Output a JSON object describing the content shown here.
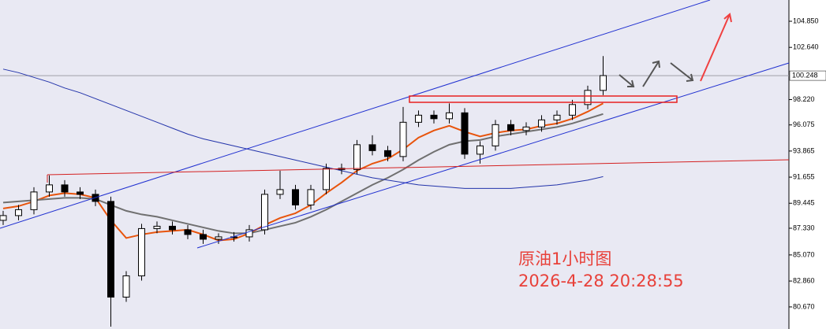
{
  "chart_data": {
    "type": "candlestick",
    "open": [
      88.0,
      88.4,
      88.9,
      90.4,
      91.0,
      90.4,
      90.2,
      89.6,
      81.5,
      83.3,
      87.3,
      87.5,
      87.2,
      86.8,
      86.4,
      86.6,
      86.6,
      87.2,
      90.2,
      90.6,
      89.3,
      90.6,
      92.4,
      92.3,
      94.4,
      93.9,
      93.4,
      96.3,
      96.9,
      96.6,
      97.1,
      93.6,
      94.3,
      96.1,
      95.6,
      95.9,
      96.5,
      96.9,
      97.8,
      99.0
    ],
    "high": [
      88.8,
      89.3,
      90.8,
      91.8,
      91.4,
      90.8,
      90.6,
      90.0,
      83.7,
      87.7,
      87.9,
      87.9,
      87.6,
      87.2,
      86.9,
      87.0,
      87.6,
      90.6,
      92.2,
      91.0,
      91.0,
      92.8,
      92.8,
      94.8,
      95.2,
      94.3,
      97.6,
      97.3,
      97.3,
      97.9,
      97.5,
      94.7,
      96.5,
      96.5,
      96.3,
      96.9,
      97.3,
      98.2,
      99.4,
      101.9
    ],
    "low": [
      87.6,
      88.0,
      88.5,
      90.0,
      90.0,
      89.8,
      89.2,
      79.0,
      81.1,
      82.9,
      86.9,
      86.8,
      86.4,
      86.0,
      86.0,
      86.2,
      86.2,
      86.8,
      89.8,
      88.9,
      88.9,
      90.2,
      91.9,
      91.9,
      93.5,
      93.0,
      93.0,
      95.9,
      96.2,
      96.2,
      93.2,
      92.8,
      93.9,
      95.2,
      95.2,
      95.5,
      96.1,
      96.5,
      97.4,
      98.6
    ],
    "close": [
      88.4,
      88.9,
      90.4,
      91.0,
      90.4,
      90.2,
      89.6,
      81.5,
      83.3,
      87.3,
      87.5,
      87.2,
      86.8,
      86.4,
      86.6,
      86.6,
      87.2,
      90.2,
      90.6,
      89.3,
      90.6,
      92.4,
      92.3,
      94.4,
      93.9,
      93.4,
      96.3,
      96.9,
      96.6,
      97.1,
      93.6,
      94.3,
      96.1,
      95.6,
      95.9,
      96.5,
      96.9,
      97.8,
      99.0,
      100.25
    ],
    "up_color": "#ffffff",
    "down_color": "#000000",
    "series": [
      {
        "color": "#e8540c",
        "values": [
          89.0,
          89.2,
          89.6,
          90.1,
          90.3,
          90.2,
          89.9,
          88.0,
          86.5,
          86.8,
          87.0,
          87.1,
          87.2,
          86.8,
          86.3,
          86.4,
          86.9,
          87.6,
          88.2,
          88.6,
          89.3,
          90.3,
          91.2,
          92.2,
          92.8,
          93.2,
          94.0,
          95.0,
          95.6,
          96.0,
          95.5,
          95.1,
          95.4,
          95.6,
          95.7,
          96.0,
          96.2,
          96.6,
          97.2,
          97.9
        ]
      },
      {
        "color": "#707070",
        "values": [
          89.5,
          89.6,
          89.7,
          89.8,
          89.9,
          89.9,
          89.8,
          89.3,
          88.8,
          88.5,
          88.3,
          88.0,
          87.7,
          87.4,
          87.1,
          86.9,
          86.9,
          87.2,
          87.5,
          87.8,
          88.3,
          88.9,
          89.6,
          90.3,
          91.0,
          91.6,
          92.3,
          93.1,
          93.8,
          94.4,
          94.7,
          94.8,
          95.1,
          95.3,
          95.5,
          95.7,
          95.9,
          96.2,
          96.6,
          97.0
        ]
      },
      {
        "color": "#2233aa",
        "values": [
          100.8,
          100.5,
          100.1,
          99.7,
          99.2,
          98.8,
          98.3,
          97.8,
          97.3,
          96.8,
          96.3,
          95.8,
          95.3,
          94.9,
          94.6,
          94.3,
          94.0,
          93.7,
          93.4,
          93.1,
          92.8,
          92.5,
          92.2,
          91.9,
          91.6,
          91.4,
          91.2,
          91.0,
          90.9,
          90.8,
          90.7,
          90.7,
          90.7,
          90.7,
          90.8,
          90.9,
          91.0,
          91.2,
          91.4,
          91.7
        ]
      }
    ],
    "ylim": [
      78.8,
      106.65
    ],
    "yticks": [
      {
        "value": 104.85,
        "label": "104.850"
      },
      {
        "value": 102.64,
        "label": "102.640"
      },
      {
        "value": 98.22,
        "label": "98.220"
      },
      96.075,
      93.865,
      91.655,
      89.445,
      {
        "value": 87.33,
        "label": "87.330"
      },
      {
        "value": 85.07,
        "label": "85.070"
      },
      {
        "value": 82.86,
        "label": "82.860"
      },
      {
        "value": 80.67,
        "label": "80.670"
      }
    ],
    "last_price": 100.248,
    "annotations": [
      "原油1小时图",
      "2026-4-28 20:28:55"
    ]
  }
}
